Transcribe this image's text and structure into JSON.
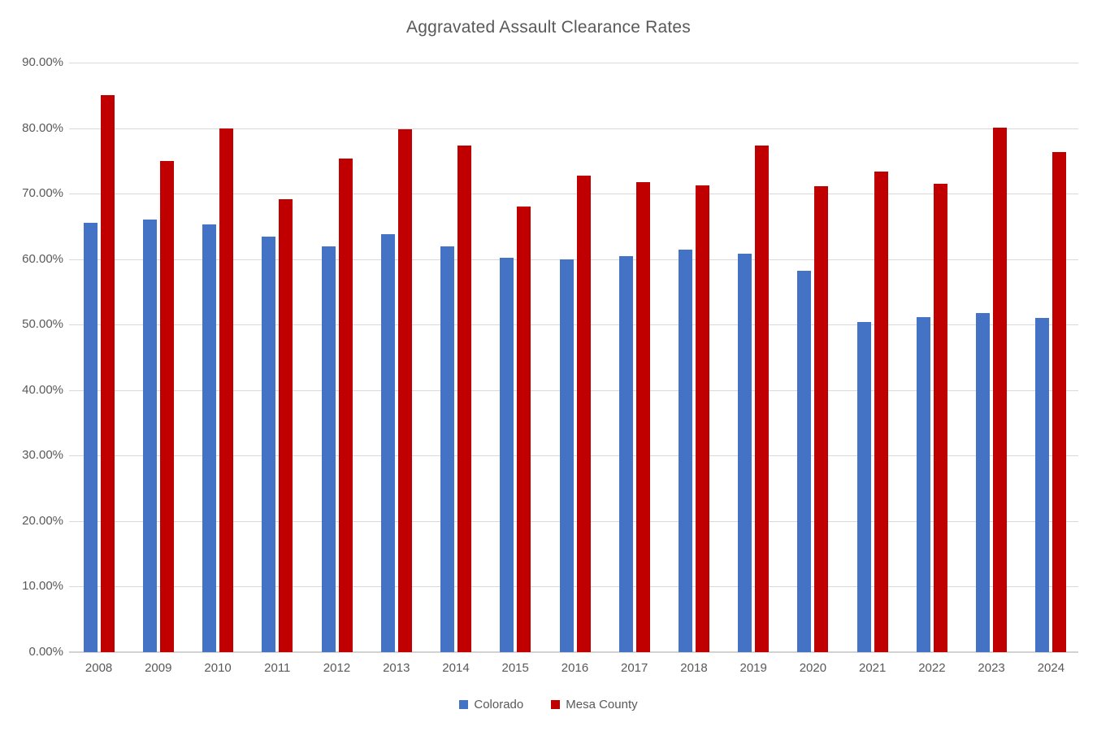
{
  "chart_data": {
    "type": "bar",
    "title": "Aggravated Assault Clearance Rates",
    "xlabel": "",
    "ylabel": "",
    "categories": [
      "2008",
      "2009",
      "2010",
      "2011",
      "2012",
      "2013",
      "2014",
      "2015",
      "2016",
      "2017",
      "2018",
      "2019",
      "2020",
      "2021",
      "2022",
      "2023",
      "2024"
    ],
    "series": [
      {
        "name": "Colorado",
        "color": "#4472C4",
        "values": [
          65.5,
          66.1,
          65.3,
          63.5,
          61.9,
          63.8,
          62.0,
          60.2,
          60.0,
          60.4,
          61.4,
          60.8,
          58.2,
          50.4,
          51.1,
          51.8,
          51.0
        ]
      },
      {
        "name": "Mesa County",
        "color": "#C00000",
        "values": [
          85.0,
          75.0,
          80.0,
          69.1,
          75.3,
          79.8,
          77.4,
          68.0,
          72.7,
          71.8,
          71.3,
          77.4,
          71.1,
          73.4,
          71.5,
          80.1,
          76.3
        ]
      }
    ],
    "ylim": [
      0,
      90
    ],
    "ytick_step": 10,
    "ytick_labels": [
      "0.00%",
      "10.00%",
      "20.00%",
      "30.00%",
      "40.00%",
      "50.00%",
      "60.00%",
      "70.00%",
      "80.00%",
      "90.00%"
    ],
    "grid": true,
    "legend_position": "bottom",
    "colors": {
      "text": "#595959",
      "gridline": "#D9D9D9",
      "background": "#FFFFFF"
    }
  }
}
